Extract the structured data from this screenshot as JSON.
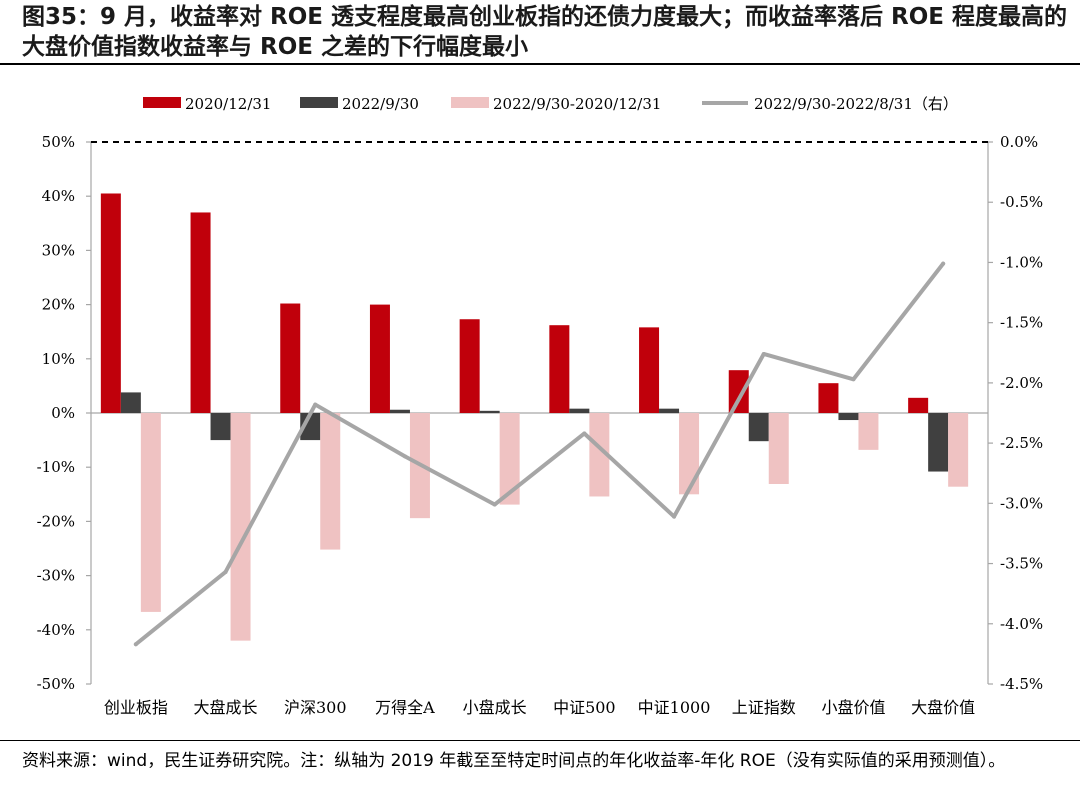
{
  "title": "图35：9 月，收益率对 ROE 透支程度最高创业板指的还债力度最大；而收益率落后 ROE 程度最高的大盘价值指数收益率与 ROE 之差的下行幅度最小",
  "footnote": "资料来源：wind，民生证券研究院。注：纵轴为 2019 年截至至特定时间点的年化收益率-年化 ROE（没有实际值的采用预测值）。",
  "colors": {
    "series_2020": "#c0000b",
    "series_2022": "#404040",
    "series_diff": "#efc2c2",
    "series_line": "#a6a6a6"
  },
  "chart_data": {
    "type": "bar",
    "categories": [
      "创业板指",
      "大盘成长",
      "沪深300",
      "万得全A",
      "小盘成长",
      "中证500",
      "中证1000",
      "上证指数",
      "小盘价值",
      "大盘价值"
    ],
    "series": [
      {
        "name": "2020/12/31",
        "type": "bar",
        "axis": "left",
        "values": [
          40.5,
          37.0,
          20.2,
          20.0,
          17.3,
          16.2,
          15.8,
          7.9,
          5.5,
          2.8
        ]
      },
      {
        "name": "2022/9/30",
        "type": "bar",
        "axis": "left",
        "values": [
          3.8,
          -5.0,
          -5.0,
          0.6,
          0.4,
          0.8,
          0.8,
          -5.2,
          -1.3,
          -10.8
        ]
      },
      {
        "name": "2022/9/30-2020/12/31",
        "type": "bar",
        "axis": "left",
        "values": [
          -36.7,
          -42.0,
          -25.2,
          -19.4,
          -16.9,
          -15.4,
          -15.0,
          -13.1,
          -6.8,
          -13.6
        ]
      },
      {
        "name": "2022/9/30-2022/8/31（右）",
        "type": "line",
        "axis": "right",
        "values": [
          -4.17,
          -3.57,
          -2.18,
          -2.61,
          -3.01,
          -2.42,
          -3.11,
          -1.76,
          -1.97,
          -1.01
        ]
      }
    ],
    "ylim": [
      -50,
      50
    ],
    "y_ticks": [
      "50%",
      "40%",
      "30%",
      "20%",
      "10%",
      "0%",
      "-10%",
      "-20%",
      "-30%",
      "-40%",
      "-50%"
    ],
    "y2lim": [
      -4.5,
      0
    ],
    "y2_ticks": [
      "0.0%",
      "-0.5%",
      "-1.0%",
      "-1.5%",
      "-2.0%",
      "-2.5%",
      "-3.0%",
      "-3.5%",
      "-4.0%",
      "-4.5%"
    ],
    "legend_position": "top",
    "grid": false
  }
}
